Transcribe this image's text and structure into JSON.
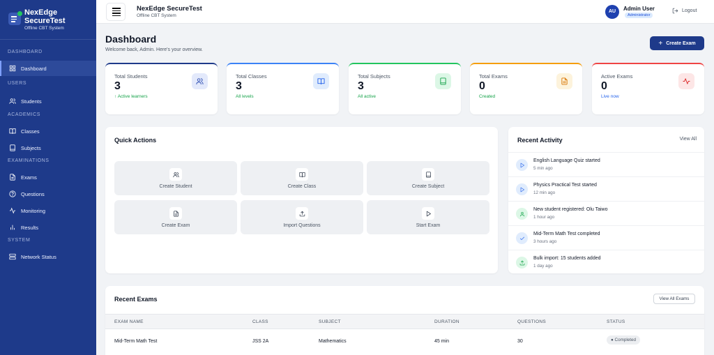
{
  "brand": {
    "name_line1": "NexEdge",
    "name_line2": "SecureTest",
    "subtitle": "Offline CBT System"
  },
  "sidebar": {
    "sections": {
      "dashboard": "DASHBOARD",
      "users": "USERS",
      "academics": "ACADEMICS",
      "examinations": "EXAMINATIONS",
      "system": "SYSTEM"
    },
    "items": {
      "dashboard": "Dashboard",
      "students": "Students",
      "classes": "Classes",
      "subjects": "Subjects",
      "exams": "Exams",
      "questions": "Questions",
      "monitoring": "Monitoring",
      "results": "Results",
      "network": "Network Status"
    }
  },
  "topbar": {
    "app_name": "NexEdge SecureTest",
    "app_sub": "Offline CBT System",
    "avatar_initials": "AU",
    "user_name": "Admin User",
    "user_role": "Administrator",
    "logout": "Logout"
  },
  "page": {
    "title": "Dashboard",
    "subtitle": "Welcome back, Admin. Here's your overview.",
    "create_button": "Create Exam"
  },
  "stats": [
    {
      "label": "Total Students",
      "value": "3",
      "note": "↑ Active learners",
      "color": "#1e3a8a",
      "note_color": "#16a34a",
      "icon_bg": "#e3e9fb",
      "icon_color": "#2f4fb3",
      "icon": "users-icon"
    },
    {
      "label": "Total Classes",
      "value": "3",
      "note": "All levels",
      "color": "#3b82f6",
      "note_color": "#16a34a",
      "icon_bg": "#e0ecfd",
      "icon_color": "#2563eb",
      "icon": "book-open-icon"
    },
    {
      "label": "Total Subjects",
      "value": "3",
      "note": "All active",
      "color": "#22c55e",
      "note_color": "#16a34a",
      "icon_bg": "#dcf7e6",
      "icon_color": "#16a34a",
      "icon": "book-icon"
    },
    {
      "label": "Total Exams",
      "value": "0",
      "note": "Created",
      "color": "#f59e0b",
      "note_color": "#16a34a",
      "icon_bg": "#fdf3dc",
      "icon_color": "#d97706",
      "icon": "file-icon"
    },
    {
      "label": "Active Exams",
      "value": "0",
      "note": "Live now",
      "color": "#ef4444",
      "note_color": "#2563eb",
      "icon_bg": "#fde6e6",
      "icon_color": "#dc2626",
      "icon": "activity-icon"
    }
  ],
  "quick_actions": {
    "title": "Quick Actions",
    "items": [
      {
        "label": "Create Student",
        "icon": "users-icon"
      },
      {
        "label": "Create Class",
        "icon": "book-open-icon"
      },
      {
        "label": "Create Subject",
        "icon": "book-icon"
      },
      {
        "label": "Create Exam",
        "icon": "file-icon"
      },
      {
        "label": "Import Questions",
        "icon": "upload-icon"
      },
      {
        "label": "Start Exam",
        "icon": "play-icon"
      }
    ]
  },
  "activity": {
    "title": "Recent Activity",
    "view_all": "View All",
    "items": [
      {
        "text": "English Language Quiz started",
        "time": "5 min ago",
        "icon": "play-icon",
        "bg": "#e0ecfd",
        "color": "#2563eb"
      },
      {
        "text": "Physics Practical Test started",
        "time": "12 min ago",
        "icon": "play-icon",
        "bg": "#e0ecfd",
        "color": "#2563eb"
      },
      {
        "text": "New student registered: Olu Taiwo",
        "time": "1 hour ago",
        "icon": "user-icon",
        "bg": "#dcf7e6",
        "color": "#16a34a"
      },
      {
        "text": "Mid-Term Math Test completed",
        "time": "3 hours ago",
        "icon": "check-icon",
        "bg": "#e0ecfd",
        "color": "#2563eb"
      },
      {
        "text": "Bulk import: 15 students added",
        "time": "1 day ago",
        "icon": "upload-icon",
        "bg": "#dcf7e6",
        "color": "#16a34a"
      }
    ]
  },
  "recent_exams": {
    "title": "Recent Exams",
    "view_all": "View All Exams",
    "columns": [
      "EXAM NAME",
      "CLASS",
      "SUBJECT",
      "DURATION",
      "QUESTIONS",
      "STATUS"
    ],
    "rows": [
      {
        "name": "Mid-Term Math Test",
        "class": "JSS 2A",
        "subject": "Mathematics",
        "duration": "45 min",
        "questions": "30",
        "status": "● Completed"
      }
    ]
  }
}
